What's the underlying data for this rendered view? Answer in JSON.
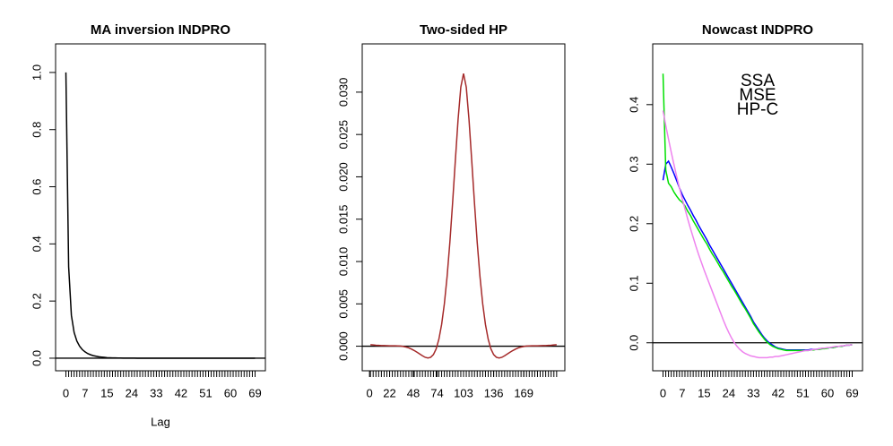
{
  "chart_data": [
    {
      "type": "line",
      "title": "MA inversion INDPRO",
      "x_label": "Lag",
      "color": "#000000",
      "hline": 0,
      "categories": [
        "0",
        null,
        null,
        null,
        null,
        null,
        null,
        "7",
        null,
        null,
        null,
        null,
        null,
        null,
        null,
        "15",
        null,
        null,
        null,
        null,
        null,
        null,
        null,
        null,
        "24",
        null,
        null,
        null,
        null,
        null,
        null,
        null,
        null,
        "33",
        null,
        null,
        null,
        null,
        null,
        null,
        null,
        null,
        "42",
        null,
        null,
        null,
        null,
        null,
        null,
        null,
        null,
        "51",
        null,
        null,
        null,
        null,
        null,
        null,
        null,
        null,
        "60",
        null,
        null,
        null,
        null,
        null,
        null,
        null,
        null,
        "69"
      ],
      "values": [
        1,
        0.32,
        0.15,
        0.09,
        0.06,
        0.042,
        0.03,
        0.022,
        0.016,
        0.012,
        0.009,
        0.007,
        0.005,
        0.004,
        0.003,
        0.002,
        0.0015,
        0.001,
        0.001,
        0.0007,
        0.0005,
        0.0004,
        0.0003,
        0.0002,
        0.0002,
        0.0001,
        0,
        0,
        0,
        0,
        0,
        0,
        0,
        0,
        0,
        0,
        0,
        0,
        0,
        0,
        0,
        0,
        0,
        0,
        0,
        0,
        0,
        0,
        0,
        0,
        0,
        0,
        0,
        0,
        0,
        0,
        0,
        0,
        0,
        0,
        0,
        0,
        0,
        0,
        0,
        0,
        0,
        0,
        0,
        0
      ],
      "ylim": [
        -0.044,
        1.1
      ],
      "yticks": [
        {
          "value": 0,
          "label": "0.0"
        },
        {
          "value": 0.2,
          "label": "0.2"
        },
        {
          "value": 0.4,
          "label": "0.4"
        },
        {
          "value": 0.6,
          "label": "0.6"
        },
        {
          "value": 0.8,
          "label": "0.8"
        },
        {
          "value": 1,
          "label": "1.0"
        }
      ]
    },
    {
      "type": "line",
      "title": "Two-sided HP",
      "color": "#a52a2a",
      "hline": 0,
      "x": [
        1,
        4,
        7,
        10,
        13,
        16,
        19,
        22,
        25,
        28,
        31,
        34,
        37,
        40,
        43,
        46,
        49,
        52,
        55,
        58,
        61,
        64,
        67,
        70,
        73,
        76,
        79,
        82,
        85,
        88,
        91,
        94,
        97,
        100,
        103,
        106,
        109,
        112,
        115,
        118,
        121,
        124,
        127,
        130,
        133,
        136,
        139,
        142,
        145,
        148,
        151,
        154,
        157,
        160,
        163,
        166,
        169,
        172,
        175,
        178,
        181,
        184,
        187,
        190,
        193,
        196,
        199,
        202,
        205
      ],
      "values": [
        0.00018,
        0.00015,
        0.00012,
        0.0001,
        8e-05,
        7e-05,
        6e-05,
        5e-05,
        5e-05,
        5e-05,
        4e-05,
        2e-05,
        -3e-05,
        -0.0001,
        -0.0002,
        -0.00034,
        -0.00051,
        -0.00071,
        -0.00092,
        -0.00113,
        -0.00131,
        -0.00139,
        -0.00131,
        -0.00099,
        -0.00032,
        0.00083,
        0.00257,
        0.00501,
        0.00824,
        0.01223,
        0.01688,
        0.02189,
        0.02674,
        0.03058,
        0.0322,
        0.03058,
        0.02674,
        0.02189,
        0.01688,
        0.01223,
        0.00824,
        0.00501,
        0.00257,
        0.00083,
        -0.00032,
        -0.00099,
        -0.00131,
        -0.00139,
        -0.00131,
        -0.00113,
        -0.00092,
        -0.00071,
        -0.00051,
        -0.00034,
        -0.0002,
        -0.0001,
        -3e-05,
        2e-05,
        4e-05,
        5e-05,
        5e-05,
        5e-05,
        6e-05,
        7e-05,
        8e-05,
        0.0001,
        0.00012,
        0.00015,
        0.00018
      ],
      "xlim": [
        -8,
        214
      ],
      "xticks": [
        0,
        22,
        48,
        74,
        103,
        136,
        169
      ],
      "ylim": [
        -0.0029,
        0.0357
      ],
      "yticks": [
        {
          "value": 0,
          "label": "0.000"
        },
        {
          "value": 0.005,
          "label": "0.005"
        },
        {
          "value": 0.01,
          "label": "0.010"
        },
        {
          "value": 0.015,
          "label": "0.015"
        },
        {
          "value": 0.02,
          "label": "0.020"
        },
        {
          "value": 0.025,
          "label": "0.025"
        },
        {
          "value": 0.03,
          "label": "0.030"
        }
      ]
    },
    {
      "type": "line",
      "title": "Nowcast INDPRO",
      "hline": 0,
      "legend": "top",
      "categories": [
        "0",
        null,
        null,
        null,
        null,
        null,
        null,
        "7",
        null,
        null,
        null,
        null,
        null,
        null,
        null,
        "15",
        null,
        null,
        null,
        null,
        null,
        null,
        null,
        null,
        "24",
        null,
        null,
        null,
        null,
        null,
        null,
        null,
        null,
        "33",
        null,
        null,
        null,
        null,
        null,
        null,
        null,
        null,
        "42",
        null,
        null,
        null,
        null,
        null,
        null,
        null,
        null,
        "51",
        null,
        null,
        null,
        null,
        null,
        null,
        null,
        null,
        "60",
        null,
        null,
        null,
        null,
        null,
        null,
        null,
        null,
        "69"
      ],
      "series": [
        {
          "name": "SSA",
          "color": "#0000ff",
          "values": [
            0.273,
            0.3,
            0.305,
            0.295,
            0.284,
            0.272,
            0.26,
            0.249,
            0.24,
            0.231,
            0.223,
            0.214,
            0.206,
            0.197,
            0.189,
            0.181,
            0.173,
            0.164,
            0.156,
            0.148,
            0.14,
            0.132,
            0.124,
            0.116,
            0.108,
            0.1,
            0.092,
            0.084,
            0.076,
            0.068,
            0.06,
            0.052,
            0.044,
            0.035,
            0.028,
            0.021,
            0.014,
            0.008,
            0.003,
            -0.001,
            -0.004,
            -0.007,
            -0.009,
            -0.01,
            -0.011,
            -0.012,
            -0.012,
            -0.012,
            -0.012,
            -0.012,
            -0.012,
            -0.012,
            -0.012,
            -0.012,
            -0.011,
            -0.011,
            -0.011,
            -0.01,
            -0.01,
            -0.009,
            -0.009,
            -0.008,
            -0.008,
            -0.007,
            -0.006,
            -0.006,
            -0.005,
            -0.004,
            -0.004,
            -0.003
          ]
        },
        {
          "name": "MSE",
          "color": "#00e000",
          "values": [
            0.452,
            0.29,
            0.268,
            0.262,
            0.253,
            0.246,
            0.24,
            0.236,
            0.23,
            0.221,
            0.214,
            0.205,
            0.197,
            0.189,
            0.181,
            0.173,
            0.166,
            0.157,
            0.149,
            0.142,
            0.134,
            0.126,
            0.119,
            0.111,
            0.103,
            0.095,
            0.088,
            0.08,
            0.072,
            0.064,
            0.057,
            0.049,
            0.041,
            0.032,
            0.025,
            0.018,
            0.012,
            0.006,
            0.001,
            -0.003,
            -0.006,
            -0.008,
            -0.01,
            -0.011,
            -0.012,
            -0.013,
            -0.013,
            -0.013,
            -0.013,
            -0.013,
            -0.013,
            -0.013,
            -0.013,
            -0.013,
            -0.012,
            -0.012,
            -0.011,
            -0.011,
            -0.01,
            -0.01,
            -0.009,
            -0.008,
            -0.008,
            -0.007,
            -0.006,
            -0.006,
            -0.005,
            -0.004,
            -0.004,
            -0.003
          ]
        },
        {
          "name": "HP-C",
          "color": "#ee82ee",
          "values": [
            0.39,
            0.365,
            0.342,
            0.32,
            0.299,
            0.279,
            0.26,
            0.242,
            0.225,
            0.208,
            0.192,
            0.177,
            0.162,
            0.148,
            0.135,
            0.122,
            0.11,
            0.098,
            0.086,
            0.074,
            0.062,
            0.05,
            0.038,
            0.027,
            0.017,
            0.008,
            0,
            -0.006,
            -0.011,
            -0.015,
            -0.018,
            -0.02,
            -0.022,
            -0.023,
            -0.024,
            -0.025,
            -0.025,
            -0.025,
            -0.025,
            -0.024,
            -0.024,
            -0.023,
            -0.023,
            -0.022,
            -0.021,
            -0.02,
            -0.019,
            -0.018,
            -0.017,
            -0.016,
            -0.015,
            -0.014,
            -0.013,
            -0.013,
            -0.012,
            -0.011,
            -0.011,
            -0.01,
            -0.009,
            -0.009,
            -0.008,
            -0.008,
            -0.007,
            -0.006,
            -0.006,
            -0.005,
            -0.005,
            -0.004,
            -0.004,
            -0.003
          ]
        }
      ],
      "ylim": [
        -0.047,
        0.502
      ],
      "yticks": [
        {
          "value": 0,
          "label": "0.0"
        },
        {
          "value": 0.1,
          "label": "0.1"
        },
        {
          "value": 0.2,
          "label": "0.2"
        },
        {
          "value": 0.3,
          "label": "0.3"
        },
        {
          "value": 0.4,
          "label": "0.4"
        }
      ]
    }
  ]
}
